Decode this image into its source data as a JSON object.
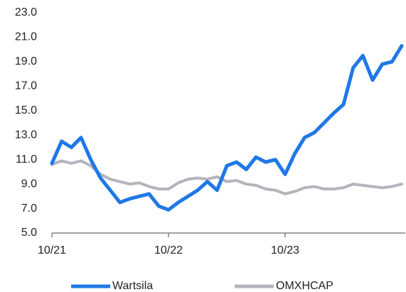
{
  "chart_data": {
    "type": "line",
    "categories": [
      "10/21",
      null,
      null,
      null,
      null,
      null,
      null,
      null,
      null,
      null,
      null,
      null,
      "10/22",
      null,
      null,
      null,
      null,
      null,
      null,
      null,
      null,
      null,
      null,
      null,
      "10/23",
      null,
      null,
      null,
      null,
      null,
      null,
      null,
      null,
      null,
      null,
      null,
      null
    ],
    "series": [
      {
        "name": "Wartsila",
        "color": "#1f78e6",
        "values": [
          10.7,
          12.5,
          12.0,
          12.8,
          11.0,
          9.5,
          8.5,
          7.5,
          7.8,
          8.0,
          8.2,
          7.2,
          6.9,
          7.5,
          8.0,
          8.5,
          9.2,
          8.5,
          10.5,
          10.8,
          10.2,
          11.2,
          10.8,
          11.0,
          9.8,
          11.5,
          12.8,
          13.2,
          14.0,
          14.8,
          15.5,
          18.5,
          19.5,
          17.5,
          18.8,
          19.0,
          20.3
        ]
      },
      {
        "name": "OMXHCAP",
        "color": "#b4b4bc",
        "values": [
          10.6,
          10.9,
          10.7,
          10.9,
          10.5,
          9.8,
          9.4,
          9.2,
          9.0,
          9.1,
          8.8,
          8.6,
          8.6,
          9.1,
          9.4,
          9.5,
          9.4,
          9.6,
          9.2,
          9.3,
          9.0,
          8.9,
          8.6,
          8.5,
          8.2,
          8.4,
          8.7,
          8.8,
          8.6,
          8.6,
          8.7,
          9.0,
          8.9,
          8.8,
          8.7,
          8.8,
          9.0
        ]
      }
    ],
    "ylim": [
      5,
      23
    ],
    "yticks": [
      {
        "value": 5,
        "label": "5.0"
      },
      {
        "value": 7,
        "label": "7.0"
      },
      {
        "value": 9,
        "label": "9.0"
      },
      {
        "value": 11,
        "label": "11.0"
      },
      {
        "value": 13,
        "label": "13.0"
      },
      {
        "value": 15,
        "label": "15.0"
      },
      {
        "value": 17,
        "label": "17.0"
      },
      {
        "value": 19,
        "label": "19.0"
      },
      {
        "value": 21,
        "label": "21.0"
      },
      {
        "value": 23,
        "label": "23.0"
      }
    ],
    "grid": false,
    "legend": "bottom"
  }
}
